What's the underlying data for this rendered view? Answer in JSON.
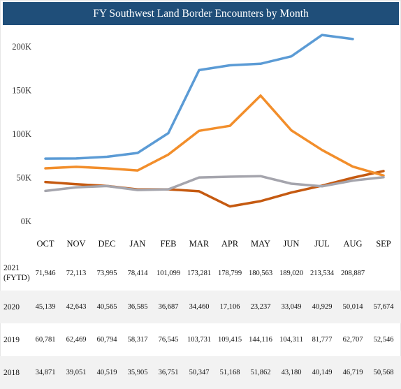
{
  "chart_data": {
    "type": "line",
    "title": "FY Southwest Land Border Encounters by Month",
    "categories": [
      "OCT",
      "NOV",
      "DEC",
      "JAN",
      "FEB",
      "MAR",
      "APR",
      "MAY",
      "JUN",
      "JUL",
      "AUG",
      "SEP"
    ],
    "yticks": [
      "0K",
      "50K",
      "100K",
      "150K",
      "200K"
    ],
    "ylim": [
      0,
      220000
    ],
    "grid": false,
    "legend": "none",
    "series": [
      {
        "color": "#5b9bd5",
        "values": [
          71946,
          72113,
          73995,
          78414,
          101099,
          173281,
          178799,
          180563,
          189020,
          213534,
          208887,
          null
        ]
      },
      {
        "color": "#c55a11",
        "values": [
          45139,
          42643,
          40565,
          36585,
          36687,
          34460,
          17106,
          23237,
          33049,
          40929,
          50014,
          57674
        ]
      },
      {
        "color": "#f28e2b",
        "values": [
          60781,
          62469,
          60794,
          58317,
          76545,
          103731,
          109415,
          144116,
          104311,
          81777,
          62707,
          52546
        ]
      },
      {
        "color": "#a5a5ad",
        "values": [
          34871,
          39051,
          40519,
          35905,
          36751,
          50347,
          51168,
          51862,
          43180,
          40149,
          46719,
          50568
        ]
      }
    ]
  },
  "table": {
    "rows": [
      {
        "label": "2021\n(FYTD)",
        "cells": [
          "71,946",
          "72,113",
          "73,995",
          "78,414",
          "101,099",
          "173,281",
          "178,799",
          "180,563",
          "189,020",
          "213,534",
          "208,887",
          ""
        ]
      },
      {
        "label": "2020",
        "cells": [
          "45,139",
          "42,643",
          "40,565",
          "36,585",
          "36,687",
          "34,460",
          "17,106",
          "23,237",
          "33,049",
          "40,929",
          "50,014",
          "57,674"
        ]
      },
      {
        "label": "2019",
        "cells": [
          "60,781",
          "62,469",
          "60,794",
          "58,317",
          "76,545",
          "103,731",
          "109,415",
          "144,116",
          "104,311",
          "81,777",
          "62,707",
          "52,546"
        ]
      },
      {
        "label": "2018",
        "cells": [
          "34,871",
          "39,051",
          "40,519",
          "35,905",
          "36,751",
          "50,347",
          "51,168",
          "51,862",
          "43,180",
          "40,149",
          "46,719",
          "50,568"
        ]
      }
    ]
  }
}
